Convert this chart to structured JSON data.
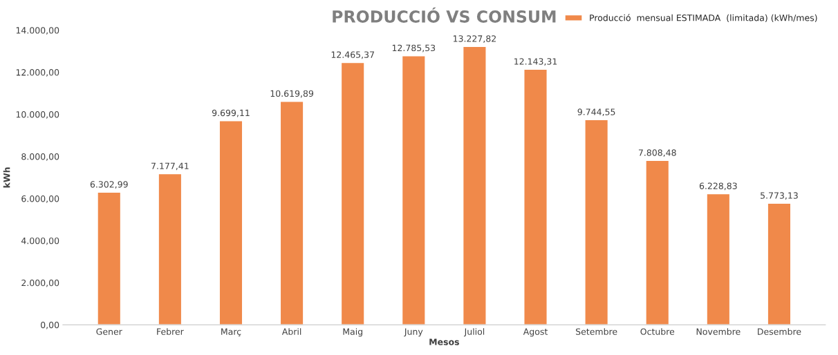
{
  "chart_data": {
    "type": "bar",
    "title": "PRODUCCIÓ VS CONSUM",
    "xlabel": "Mesos",
    "ylabel": "kWh",
    "categories": [
      "Gener",
      "Febrer",
      "Març",
      "Abril",
      "Maig",
      "Juny",
      "Juliol",
      "Agost",
      "Setembre",
      "Octubre",
      "Novembre",
      "Desembre"
    ],
    "series": [
      {
        "name": "Producció  mensual ESTIMADA  (limitada) (kWh/mes)",
        "color": "#f0894a",
        "values": [
          6302.99,
          7177.41,
          9699.11,
          10619.89,
          12465.37,
          12785.53,
          13227.82,
          12143.31,
          9744.55,
          7808.48,
          6228.83,
          5773.13
        ],
        "value_labels": [
          "6.302,99",
          "7.177,41",
          "9.699,11",
          "10.619,89",
          "12.465,37",
          "12.785,53",
          "13.227,82",
          "12.143,31",
          "9.744,55",
          "7.808,48",
          "6.228,83",
          "5.773,13"
        ]
      }
    ],
    "ylim": [
      0,
      14000
    ],
    "yticks": [
      {
        "value": 0,
        "label": "0,00"
      },
      {
        "value": 2000,
        "label": "2.000,00"
      },
      {
        "value": 4000,
        "label": "4.000,00"
      },
      {
        "value": 6000,
        "label": "6.000,00"
      },
      {
        "value": 8000,
        "label": "8.000,00"
      },
      {
        "value": 10000,
        "label": "10.000,00"
      },
      {
        "value": 12000,
        "label": "12.000,00"
      },
      {
        "value": 14000,
        "label": "14.000,00"
      }
    ],
    "legend": "top right",
    "grid": false
  }
}
